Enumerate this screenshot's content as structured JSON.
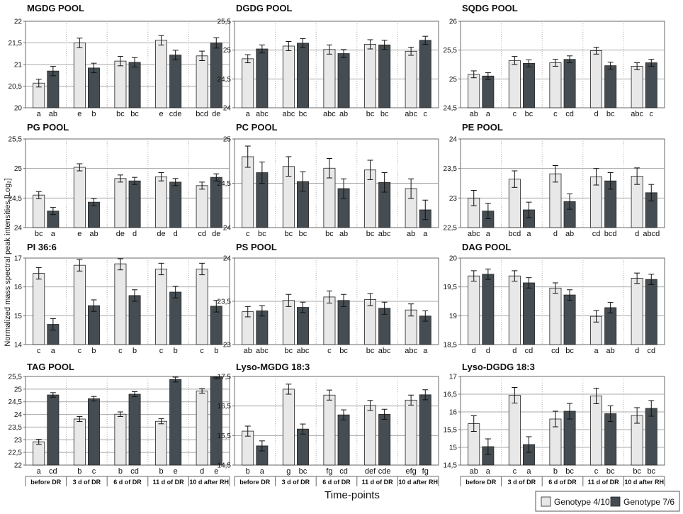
{
  "figure": {
    "ylabel": "Normalized mass spectral peak intensities [Log₂]",
    "xlabel": "Time-points"
  },
  "legend": {
    "items": [
      {
        "label": "Genotype 4/10",
        "color": "#e8e8e8"
      },
      {
        "label": "Genotype 7/6",
        "color": "#454d52"
      }
    ]
  },
  "chart_data": [
    {
      "type": "bar",
      "title": "MGDG POOL",
      "categories": [
        "before DR",
        "3 d of DR",
        "6 d of DR",
        "11 d of DR",
        "10 d after RH"
      ],
      "series": [
        {
          "name": "Genotype 4/10",
          "values": [
            20.57,
            21.5,
            21.08,
            21.56,
            21.2
          ],
          "errors": [
            0.09,
            0.11,
            0.11,
            0.11,
            0.11
          ],
          "letters": [
            "a",
            "e",
            "bc",
            "e",
            "bcd"
          ]
        },
        {
          "name": "Genotype 7/6",
          "values": [
            20.85,
            20.92,
            21.05,
            21.22,
            21.5
          ],
          "errors": [
            0.11,
            0.11,
            0.11,
            0.11,
            0.12
          ],
          "letters": [
            "ab",
            "b",
            "bc",
            "cde",
            "de"
          ]
        }
      ],
      "ylim": [
        20,
        22
      ],
      "yticks": [
        "20",
        "20,5",
        "21",
        "21,5",
        "22"
      ]
    },
    {
      "type": "bar",
      "title": "DGDG POOL",
      "categories": [
        "before DR",
        "3 d of DR",
        "6 d of DR",
        "11 d of DR",
        "10 d after RH"
      ],
      "series": [
        {
          "name": "Genotype 4/10",
          "values": [
            24.85,
            25.07,
            25.01,
            25.1,
            24.98
          ],
          "errors": [
            0.07,
            0.08,
            0.08,
            0.08,
            0.07
          ],
          "letters": [
            "a",
            "abc",
            "abc",
            "bc",
            "abc"
          ]
        },
        {
          "name": "Genotype 7/6",
          "values": [
            25.02,
            25.12,
            24.94,
            25.09,
            25.17
          ],
          "errors": [
            0.07,
            0.08,
            0.07,
            0.08,
            0.07
          ],
          "letters": [
            "abc",
            "bc",
            "ab",
            "bc",
            "c"
          ]
        }
      ],
      "ylim": [
        24,
        25.5
      ],
      "yticks": [
        "24",
        "24,5",
        "25",
        "25,5"
      ]
    },
    {
      "type": "bar",
      "title": "SQDG POOL",
      "categories": [
        "before DR",
        "3 d of DR",
        "6 d of DR",
        "11 d of DR",
        "10 d after RH"
      ],
      "series": [
        {
          "name": "Genotype 4/10",
          "values": [
            25.08,
            25.32,
            25.28,
            25.49,
            25.22
          ],
          "errors": [
            0.06,
            0.07,
            0.06,
            0.06,
            0.06
          ],
          "letters": [
            "ab",
            "c",
            "c",
            "d",
            "abc"
          ]
        },
        {
          "name": "Genotype 7/6",
          "values": [
            25.05,
            25.27,
            25.34,
            25.23,
            25.28
          ],
          "errors": [
            0.06,
            0.06,
            0.06,
            0.06,
            0.06
          ],
          "letters": [
            "a",
            "bc",
            "cd",
            "bc",
            "c"
          ]
        }
      ],
      "ylim": [
        24.5,
        26
      ],
      "yticks": [
        "24,5",
        "25",
        "25,5",
        "26"
      ]
    },
    {
      "type": "bar",
      "title": "PG POOL",
      "categories": [
        "before DR",
        "3 d of DR",
        "6 d of DR",
        "11 d of DR",
        "10 d after RH"
      ],
      "series": [
        {
          "name": "Genotype 4/10",
          "values": [
            24.55,
            25.02,
            24.83,
            24.86,
            24.71
          ],
          "errors": [
            0.06,
            0.06,
            0.06,
            0.07,
            0.06
          ],
          "letters": [
            "bc",
            "e",
            "de",
            "de",
            "cd"
          ]
        },
        {
          "name": "Genotype 7/6",
          "values": [
            24.28,
            24.43,
            24.79,
            24.77,
            24.85
          ],
          "errors": [
            0.06,
            0.06,
            0.06,
            0.06,
            0.06
          ],
          "letters": [
            "a",
            "ab",
            "d",
            "d",
            "de"
          ]
        }
      ],
      "ylim": [
        24,
        25.5
      ],
      "yticks": [
        "24",
        "24,5",
        "25",
        "25,5"
      ]
    },
    {
      "type": "bar",
      "title": "PC POOL",
      "categories": [
        "before DR",
        "3 d of DR",
        "6 d of DR",
        "11 d of DR",
        "10 d after RH"
      ],
      "series": [
        {
          "name": "Genotype 4/10",
          "values": [
            24.8,
            24.69,
            24.67,
            24.65,
            24.44
          ],
          "errors": [
            0.12,
            0.11,
            0.11,
            0.11,
            0.11
          ],
          "letters": [
            "c",
            "bc",
            "bc",
            "bc",
            "ab"
          ]
        },
        {
          "name": "Genotype 7/6",
          "values": [
            24.62,
            24.52,
            24.44,
            24.51,
            24.2
          ],
          "errors": [
            0.12,
            0.11,
            0.11,
            0.11,
            0.11
          ],
          "letters": [
            "bc",
            "bc",
            "ab",
            "abc",
            "a"
          ]
        }
      ],
      "ylim": [
        24,
        25
      ],
      "yticks": [
        "24",
        "24,5",
        "25"
      ]
    },
    {
      "type": "bar",
      "title": "PE POOL",
      "categories": [
        "before DR",
        "3 d of DR",
        "6 d of DR",
        "11 d of DR",
        "10 d after RH"
      ],
      "series": [
        {
          "name": "Genotype 4/10",
          "values": [
            23.0,
            23.32,
            23.41,
            23.36,
            23.37
          ],
          "errors": [
            0.13,
            0.14,
            0.14,
            0.14,
            0.14
          ],
          "letters": [
            "abc",
            "bcd",
            "d",
            "cd",
            "d"
          ]
        },
        {
          "name": "Genotype 7/6",
          "values": [
            22.78,
            22.8,
            22.94,
            23.29,
            23.09
          ],
          "errors": [
            0.13,
            0.13,
            0.13,
            0.14,
            0.14
          ],
          "letters": [
            "a",
            "a",
            "ab",
            "bcd",
            "abcd"
          ]
        }
      ],
      "ylim": [
        22.5,
        24
      ],
      "yticks": [
        "22,5",
        "23",
        "23,5",
        "24"
      ]
    },
    {
      "type": "bar",
      "title": "PI 36:6",
      "categories": [
        "before DR",
        "3 d of DR",
        "6 d of DR",
        "11 d of DR",
        "10 d after RH"
      ],
      "series": [
        {
          "name": "Genotype 4/10",
          "values": [
            16.47,
            16.75,
            16.8,
            16.62,
            16.62
          ],
          "errors": [
            0.2,
            0.2,
            0.21,
            0.2,
            0.2
          ],
          "letters": [
            "c",
            "c",
            "c",
            "c",
            "c"
          ]
        },
        {
          "name": "Genotype 7/6",
          "values": [
            14.7,
            15.35,
            15.7,
            15.82,
            15.33
          ],
          "errors": [
            0.2,
            0.2,
            0.2,
            0.2,
            0.2
          ],
          "letters": [
            "a",
            "b",
            "b",
            "b",
            "b"
          ]
        }
      ],
      "ylim": [
        14,
        17
      ],
      "yticks": [
        "14",
        "15",
        "16",
        "17"
      ]
    },
    {
      "type": "bar",
      "title": "PS POOL",
      "categories": [
        "before DR",
        "3 d of DR",
        "6 d of DR",
        "11 d of DR",
        "10 d after RH"
      ],
      "series": [
        {
          "name": "Genotype 4/10",
          "values": [
            23.38,
            23.51,
            23.55,
            23.52,
            23.4
          ],
          "errors": [
            0.06,
            0.07,
            0.07,
            0.07,
            0.07
          ],
          "letters": [
            "ab",
            "bc",
            "c",
            "bc",
            "abc"
          ]
        },
        {
          "name": "Genotype 7/6",
          "values": [
            23.39,
            23.43,
            23.51,
            23.42,
            23.33
          ],
          "errors": [
            0.06,
            0.06,
            0.07,
            0.07,
            0.06
          ],
          "letters": [
            "abc",
            "abc",
            "bc",
            "abc",
            "a"
          ]
        }
      ],
      "ylim": [
        23,
        24
      ],
      "yticks": [
        "23",
        "23,5",
        "24"
      ]
    },
    {
      "type": "bar",
      "title": "DAG POOL",
      "categories": [
        "before DR",
        "3 d of DR",
        "6 d of DR",
        "11 d of DR",
        "10 d after RH"
      ],
      "series": [
        {
          "name": "Genotype 4/10",
          "values": [
            19.69,
            19.69,
            19.48,
            18.99,
            19.65
          ],
          "errors": [
            0.09,
            0.09,
            0.09,
            0.1,
            0.09
          ],
          "letters": [
            "d",
            "d",
            "cd",
            "a",
            "d"
          ]
        },
        {
          "name": "Genotype 7/6",
          "values": [
            19.72,
            19.57,
            19.36,
            19.14,
            19.63
          ],
          "errors": [
            0.09,
            0.09,
            0.09,
            0.09,
            0.09
          ],
          "letters": [
            "d",
            "cd",
            "bc",
            "ab",
            "cd"
          ]
        }
      ],
      "ylim": [
        18.5,
        20
      ],
      "yticks": [
        "18,5",
        "19",
        "19,5",
        "20"
      ]
    },
    {
      "type": "bar",
      "title": "TAG POOL",
      "categories": [
        "before DR",
        "3 d of DR",
        "6 d of DR",
        "11 d of DR",
        "10 d after RH"
      ],
      "series": [
        {
          "name": "Genotype 4/10",
          "values": [
            22.92,
            23.82,
            24.01,
            23.73,
            24.93
          ],
          "errors": [
            0.1,
            0.1,
            0.09,
            0.1,
            0.09
          ],
          "letters": [
            "a",
            "b",
            "b",
            "b",
            "d"
          ]
        },
        {
          "name": "Genotype 7/6",
          "values": [
            24.77,
            24.62,
            24.8,
            25.38,
            25.49
          ],
          "errors": [
            0.09,
            0.09,
            0.1,
            0.1,
            0.08
          ],
          "letters": [
            "cd",
            "c",
            "cd",
            "e",
            "e"
          ]
        }
      ],
      "ylim": [
        22,
        25.5
      ],
      "yticks": [
        "22",
        "22,5",
        "23",
        "23,5",
        "24",
        "24,5",
        "25",
        "25,5"
      ]
    },
    {
      "type": "bar",
      "title": "Lyso-MGDG 18:3",
      "categories": [
        "before DR",
        "3 d of DR",
        "6 d of DR",
        "11 d of DR",
        "10 d after RH"
      ],
      "series": [
        {
          "name": "Genotype 4/10",
          "values": [
            15.65,
            17.07,
            16.87,
            16.52,
            16.7
          ],
          "errors": [
            0.17,
            0.17,
            0.17,
            0.17,
            0.17
          ],
          "letters": [
            "b",
            "g",
            "fg",
            "def",
            "efg"
          ]
        },
        {
          "name": "Genotype 7/6",
          "values": [
            15.15,
            15.72,
            16.2,
            16.22,
            16.88
          ],
          "errors": [
            0.17,
            0.17,
            0.17,
            0.17,
            0.17
          ],
          "letters": [
            "a",
            "bc",
            "cd",
            "cde",
            "fg"
          ]
        }
      ],
      "ylim": [
        14.5,
        17.5
      ],
      "yticks": [
        "14,5",
        "15,5",
        "16,5",
        "17,5"
      ]
    },
    {
      "type": "bar",
      "title": "Lyso-DGDG 18:3",
      "categories": [
        "before DR",
        "3 d of DR",
        "6 d of DR",
        "11 d of DR",
        "10 d after RH"
      ],
      "series": [
        {
          "name": "Genotype 4/10",
          "values": [
            15.67,
            16.47,
            15.8,
            16.45,
            15.9
          ],
          "errors": [
            0.22,
            0.22,
            0.22,
            0.22,
            0.22
          ],
          "letters": [
            "ab",
            "c",
            "b",
            "c",
            "bc"
          ]
        },
        {
          "name": "Genotype 7/6",
          "values": [
            15.02,
            15.08,
            16.02,
            15.95,
            16.1
          ],
          "errors": [
            0.22,
            0.22,
            0.22,
            0.22,
            0.22
          ],
          "letters": [
            "a",
            "a",
            "bc",
            "bc",
            "bc"
          ]
        }
      ],
      "ylim": [
        14.5,
        17
      ],
      "yticks": [
        "14,5",
        "15",
        "15,5",
        "16",
        "16,5",
        "17"
      ]
    }
  ]
}
